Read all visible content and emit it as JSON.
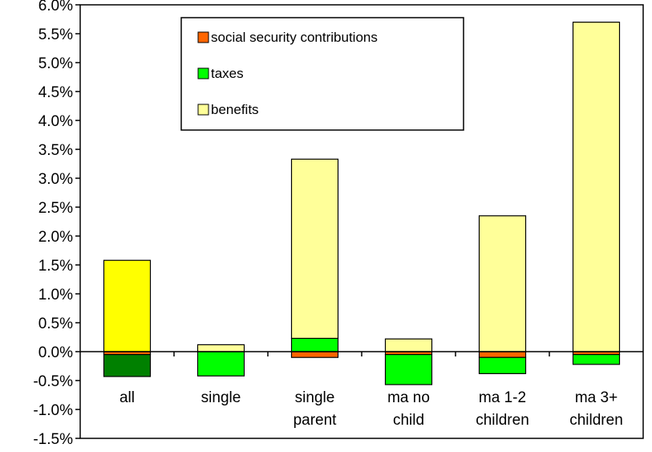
{
  "chart_data": {
    "type": "bar",
    "stacked": true,
    "title": "",
    "xlabel": "",
    "ylabel": "",
    "ylim": [
      -1.5,
      6.0
    ],
    "y_tick_step": 0.5,
    "y_tick_labels": [
      "-1.5%",
      "-1.0%",
      "-0.5%",
      "0.0%",
      "0.5%",
      "1.0%",
      "1.5%",
      "2.0%",
      "2.5%",
      "3.0%",
      "3.5%",
      "4.0%",
      "4.5%",
      "5.0%",
      "5.5%",
      "6.0%"
    ],
    "categories": [
      [
        "all"
      ],
      [
        "single"
      ],
      [
        "single",
        "parent"
      ],
      [
        "ma no",
        "child"
      ],
      [
        "ma 1-2",
        "children"
      ],
      [
        "ma 3+",
        "children"
      ]
    ],
    "series": [
      {
        "name": "social security contributions",
        "color": "#ff6600",
        "values": [
          -0.05,
          0.0,
          -0.1,
          -0.05,
          -0.1,
          -0.05
        ]
      },
      {
        "name": "taxes",
        "color": "#00ff00",
        "values": [
          -0.38,
          -0.42,
          0.23,
          -0.52,
          -0.28,
          -0.17
        ]
      },
      {
        "name": "benefits",
        "color": "#ffff99",
        "values": [
          1.58,
          0.12,
          3.1,
          0.22,
          2.35,
          5.7
        ]
      }
    ],
    "bar_overrides": [
      {
        "category_index": 0,
        "series": "benefits",
        "color": "#ffff00"
      },
      {
        "category_index": 0,
        "series": "taxes",
        "color": "#008000"
      }
    ],
    "grid": false,
    "legend_position": "top-center"
  }
}
